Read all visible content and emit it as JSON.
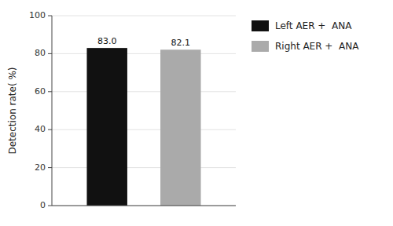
{
  "chart_data": {
    "type": "bar",
    "y_label": "Detection rate( %)",
    "categories": [
      null
    ],
    "series": [
      {
        "name": "Left AER +  ANA",
        "color": "#111111",
        "values": [
          83.0
        ],
        "value_labels": [
          "83.0"
        ]
      },
      {
        "name": "Right AER +  ANA",
        "color": "#aaaaaa",
        "values": [
          82.1
        ],
        "value_labels": [
          "82.1"
        ]
      }
    ],
    "ylim": [
      0,
      100
    ],
    "yticks": [
      0,
      20,
      40,
      60,
      80,
      100
    ],
    "data_labels": true,
    "tick_labels": "y",
    "legend": "right"
  }
}
